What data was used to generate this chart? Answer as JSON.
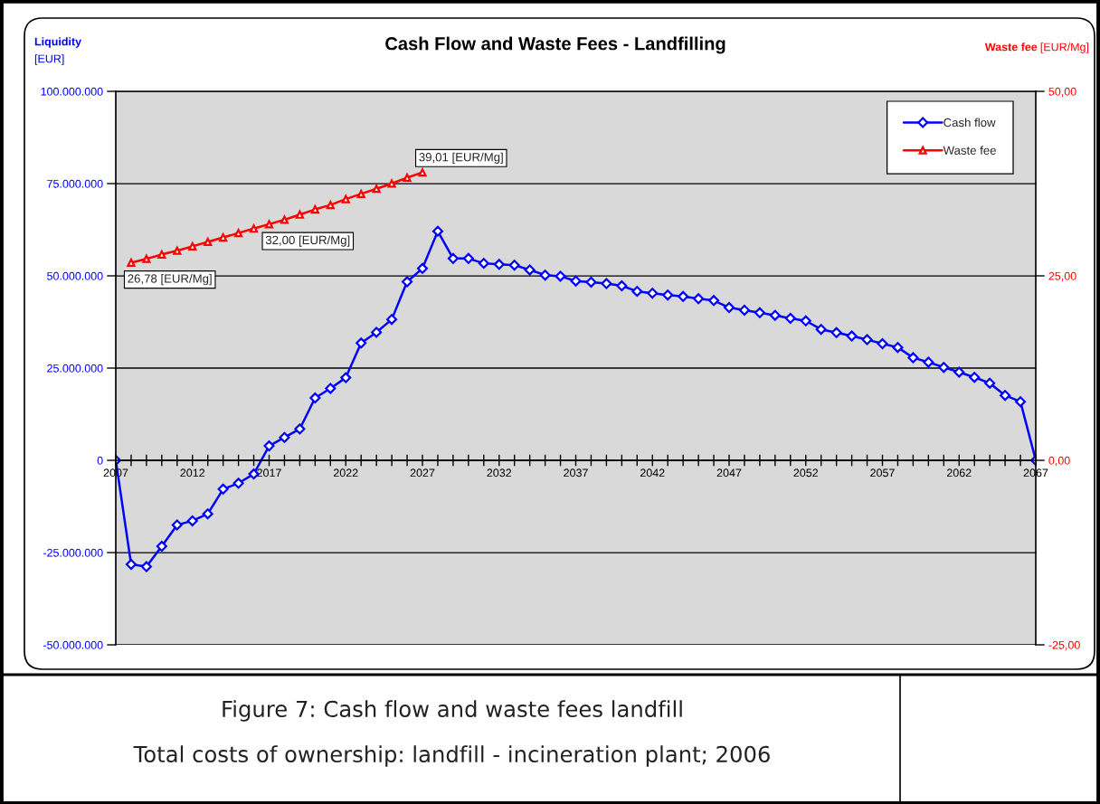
{
  "chart_data": {
    "type": "line",
    "title": "Cash Flow and Waste Fees - Landfilling",
    "ylabel": "Liquidity [EUR]",
    "y2label": "Waste fee [EUR/Mg]",
    "series": [
      {
        "name": "Cash flow",
        "color": "#0000ff",
        "marker": "diamond",
        "x": [
          2007,
          2008,
          2009,
          2010,
          2011,
          2012,
          2013,
          2014,
          2015,
          2016,
          2017,
          2018,
          2019,
          2020,
          2021,
          2022,
          2023,
          2024,
          2025,
          2026,
          2027,
          2028,
          2029,
          2030,
          2031,
          2032,
          2033,
          2034,
          2035,
          2036,
          2037,
          2038,
          2039,
          2040,
          2041,
          2042,
          2043,
          2044,
          2045,
          2046,
          2047,
          2048,
          2049,
          2050,
          2051,
          2052,
          2053,
          2054,
          2055,
          2056,
          2057,
          2058,
          2059,
          2060,
          2061,
          2062,
          2063,
          2064,
          2065,
          2066,
          2067
        ],
        "values": [
          0,
          -28200000,
          -28800000,
          -23300000,
          -17500000,
          -16400000,
          -14500000,
          -7800000,
          -6200000,
          -3700000,
          3900000,
          6200000,
          8500000,
          16900000,
          19500000,
          22400000,
          31800000,
          34700000,
          38200000,
          48400000,
          52000000,
          62100000,
          54700000,
          54700000,
          53400000,
          53100000,
          52900000,
          51600000,
          50200000,
          49900000,
          48600000,
          48300000,
          47900000,
          47300000,
          45800000,
          45300000,
          44800000,
          44400000,
          43800000,
          43300000,
          41400000,
          40700000,
          40000000,
          39300000,
          38500000,
          37800000,
          35500000,
          34600000,
          33700000,
          32700000,
          31600000,
          30600000,
          27800000,
          26600000,
          25200000,
          23900000,
          22500000,
          20900000,
          17600000,
          15900000,
          0
        ]
      },
      {
        "name": "Waste fee",
        "color": "#ff0000",
        "marker": "triangle",
        "axis": "y2",
        "x": [
          2008,
          2009,
          2010,
          2011,
          2012,
          2013,
          2014,
          2015,
          2016,
          2017,
          2018,
          2019,
          2020,
          2021,
          2022,
          2023,
          2024,
          2025,
          2026,
          2027
        ],
        "values": [
          26.78,
          27.3,
          27.9,
          28.4,
          29.0,
          29.6,
          30.2,
          30.8,
          31.4,
          32.0,
          32.6,
          33.3,
          34.0,
          34.6,
          35.4,
          36.1,
          36.8,
          37.5,
          38.3,
          39.01
        ],
        "value_labels": [
          "26,78 [EUR/Mg]",
          null,
          null,
          null,
          null,
          null,
          null,
          null,
          null,
          "32,00 [EUR/Mg]",
          null,
          null,
          null,
          null,
          null,
          null,
          null,
          null,
          null,
          "39,01 [EUR/Mg]"
        ]
      }
    ],
    "xlim": [
      2007,
      2067
    ],
    "xticks": [
      2007,
      {
        "value": 2008,
        "label": null
      },
      {
        "value": 2009,
        "label": null
      },
      {
        "value": 2010,
        "label": null
      },
      {
        "value": 2011,
        "label": null
      },
      2012,
      {
        "value": 2013,
        "label": null
      },
      {
        "value": 2014,
        "label": null
      },
      {
        "value": 2015,
        "label": null
      },
      {
        "value": 2016,
        "label": null
      },
      2017,
      {
        "value": 2018,
        "label": null
      },
      {
        "value": 2019,
        "label": null
      },
      {
        "value": 2020,
        "label": null
      },
      {
        "value": 2021,
        "label": null
      },
      2022,
      {
        "value": 2023,
        "label": null
      },
      {
        "value": 2024,
        "label": null
      },
      {
        "value": 2025,
        "label": null
      },
      {
        "value": 2026,
        "label": null
      },
      2027,
      {
        "value": 2028,
        "label": null
      },
      {
        "value": 2029,
        "label": null
      },
      {
        "value": 2030,
        "label": null
      },
      {
        "value": 2031,
        "label": null
      },
      2032,
      {
        "value": 2033,
        "label": null
      },
      {
        "value": 2034,
        "label": null
      },
      {
        "value": 2035,
        "label": null
      },
      {
        "value": 2036,
        "label": null
      },
      2037,
      {
        "value": 2038,
        "label": null
      },
      {
        "value": 2039,
        "label": null
      },
      {
        "value": 2040,
        "label": null
      },
      {
        "value": 2041,
        "label": null
      },
      2042,
      {
        "value": 2043,
        "label": null
      },
      {
        "value": 2044,
        "label": null
      },
      {
        "value": 2045,
        "label": null
      },
      {
        "value": 2046,
        "label": null
      },
      2047,
      {
        "value": 2048,
        "label": null
      },
      {
        "value": 2049,
        "label": null
      },
      {
        "value": 2050,
        "label": null
      },
      {
        "value": 2051,
        "label": null
      },
      2052,
      {
        "value": 2053,
        "label": null
      },
      {
        "value": 2054,
        "label": null
      },
      {
        "value": 2055,
        "label": null
      },
      {
        "value": 2056,
        "label": null
      },
      2057,
      {
        "value": 2058,
        "label": null
      },
      {
        "value": 2059,
        "label": null
      },
      {
        "value": 2060,
        "label": null
      },
      {
        "value": 2061,
        "label": null
      },
      2062,
      {
        "value": 2063,
        "label": null
      },
      {
        "value": 2064,
        "label": null
      },
      {
        "value": 2065,
        "label": null
      },
      {
        "value": 2066,
        "label": null
      },
      2067
    ],
    "ylim": [
      -50000000,
      100000000
    ],
    "yticks": [
      {
        "value": -50000000,
        "label": "-50.000.000"
      },
      {
        "value": -25000000,
        "label": "-25.000.000"
      },
      0,
      {
        "value": 25000000,
        "label": "25.000.000"
      },
      {
        "value": 50000000,
        "label": "50.000.000"
      },
      {
        "value": 75000000,
        "label": "75.000.000"
      },
      {
        "value": 100000000,
        "label": "100.000.000"
      }
    ],
    "y2lim": [
      -25,
      50
    ],
    "y2ticks": [
      {
        "value": -25,
        "label": "-25,00"
      },
      {
        "value": 0,
        "label": "0,00"
      },
      {
        "value": 25,
        "label": "25,00"
      },
      {
        "value": 50,
        "label": "50,00"
      }
    ],
    "grid": "y",
    "legend": "top right",
    "annotations": [
      "Figure 7: Cash flow and waste fees landfill",
      "Total costs of ownership: landfill - incineration plant; 2006"
    ]
  }
}
